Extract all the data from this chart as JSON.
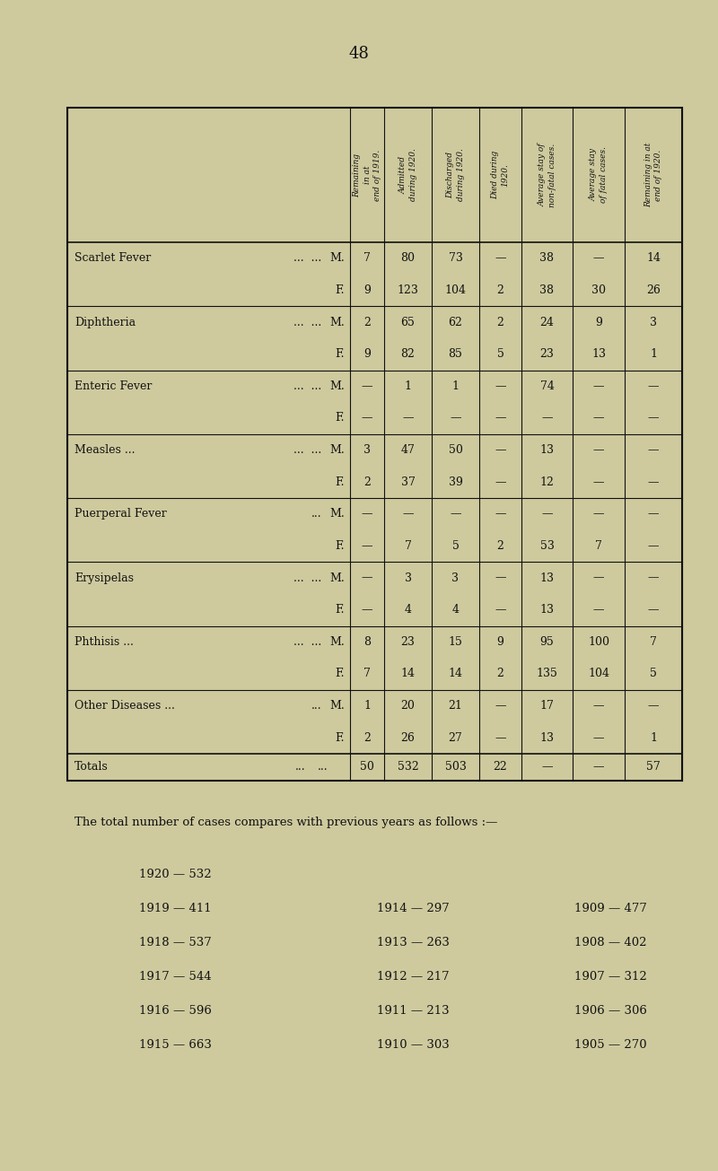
{
  "bg_color": "#ceca9e",
  "page_number": "48",
  "col_headers": [
    "Remaining\nin at\nend of 1919.",
    "Admitted\nduring 1920.",
    "Discharged\nduring 1920.",
    "Died during\n1920.",
    "Average stay of\nnon-fatal cases.",
    "Average stay\nof fatal cases.",
    "Remaining in at\nend of 1920."
  ],
  "diseases": [
    {
      "name": "Scarlet Fever",
      "dots1": "...",
      "dots2": "...",
      "rows": [
        {
          "sex": "M.",
          "c1": "7",
          "c2": "80",
          "c3": "73",
          "c4": "—",
          "c5": "38",
          "c6": "—",
          "c7": "14"
        },
        {
          "sex": "F.",
          "c1": "9",
          "c2": "123",
          "c3": "104",
          "c4": "2",
          "c5": "38",
          "c6": "30",
          "c7": "26"
        }
      ]
    },
    {
      "name": "Diphtheria",
      "dots1": "...",
      "dots2": "...",
      "rows": [
        {
          "sex": "M.",
          "c1": "2",
          "c2": "65",
          "c3": "62",
          "c4": "2",
          "c5": "24",
          "c6": "9",
          "c7": "3"
        },
        {
          "sex": "F.",
          "c1": "9",
          "c2": "82",
          "c3": "85",
          "c4": "5",
          "c5": "23",
          "c6": "13",
          "c7": "1"
        }
      ]
    },
    {
      "name": "Enteric Fever",
      "dots1": "...",
      "dots2": "...",
      "rows": [
        {
          "sex": "M.",
          "c1": "—",
          "c2": "1",
          "c3": "1",
          "c4": "—",
          "c5": "74",
          "c6": "—",
          "c7": "—"
        },
        {
          "sex": "F.",
          "c1": "—",
          "c2": "—",
          "c3": "—",
          "c4": "—",
          "c5": "—",
          "c6": "—",
          "c7": "—"
        }
      ]
    },
    {
      "name": "Measles ...",
      "dots1": "...",
      "dots2": "...",
      "rows": [
        {
          "sex": "M.",
          "c1": "3",
          "c2": "47",
          "c3": "50",
          "c4": "—",
          "c5": "13",
          "c6": "—",
          "c7": "—"
        },
        {
          "sex": "F.",
          "c1": "2",
          "c2": "37",
          "c3": "39",
          "c4": "—",
          "c5": "12",
          "c6": "—",
          "c7": "—"
        }
      ]
    },
    {
      "name": "Puerperal Fever",
      "dots1": "",
      "dots2": "...",
      "rows": [
        {
          "sex": "M.",
          "c1": "—",
          "c2": "—",
          "c3": "—",
          "c4": "—",
          "c5": "—",
          "c6": "—",
          "c7": "—"
        },
        {
          "sex": "F.",
          "c1": "—",
          "c2": "7",
          "c3": "5",
          "c4": "2",
          "c5": "53",
          "c6": "7",
          "c7": "—"
        }
      ]
    },
    {
      "name": "Erysipelas",
      "dots1": "...",
      "dots2": "...",
      "rows": [
        {
          "sex": "M.",
          "c1": "—",
          "c2": "3",
          "c3": "3",
          "c4": "—",
          "c5": "13",
          "c6": "—",
          "c7": "—"
        },
        {
          "sex": "F.",
          "c1": "—",
          "c2": "4",
          "c3": "4",
          "c4": "—",
          "c5": "13",
          "c6": "—",
          "c7": "—"
        }
      ]
    },
    {
      "name": "Phthisis ...",
      "dots1": "...",
      "dots2": "...",
      "rows": [
        {
          "sex": "M.",
          "c1": "8",
          "c2": "23",
          "c3": "15",
          "c4": "9",
          "c5": "95",
          "c6": "100",
          "c7": "7"
        },
        {
          "sex": "F.",
          "c1": "7",
          "c2": "14",
          "c3": "14",
          "c4": "2",
          "c5": "135",
          "c6": "104",
          "c7": "5"
        }
      ]
    },
    {
      "name": "Other Diseases ...",
      "dots1": "...",
      "dots2": "",
      "rows": [
        {
          "sex": "M.",
          "c1": "1",
          "c2": "20",
          "c3": "21",
          "c4": "—",
          "c5": "17",
          "c6": "—",
          "c7": "—"
        },
        {
          "sex": "F.",
          "c1": "2",
          "c2": "26",
          "c3": "27",
          "c4": "—",
          "c5": "13",
          "c6": "—",
          "c7": "1"
        }
      ]
    }
  ],
  "totals_label": "Totals",
  "totals": {
    "c1": "50",
    "c2": "532",
    "c3": "503",
    "c4": "22",
    "c5": "—",
    "c6": "—",
    "c7": "57"
  },
  "footer_text": "The total number of cases compares with previous years as follows :—",
  "year_data": [
    [
      "1920 — 532",
      "",
      ""
    ],
    [
      "1919 — 411",
      "1914 — 297",
      "1909 — 477"
    ],
    [
      "1918 — 537",
      "1913 — 263",
      "1908 — 402"
    ],
    [
      "1917 — 544",
      "1912 — 217",
      "1907 — 312"
    ],
    [
      "1916 — 596",
      "1911 — 213",
      "1906 — 306"
    ],
    [
      "1915 — 663",
      "1910 — 303",
      "1905 — 270"
    ]
  ],
  "text_color": "#111111",
  "line_color": "#111111"
}
